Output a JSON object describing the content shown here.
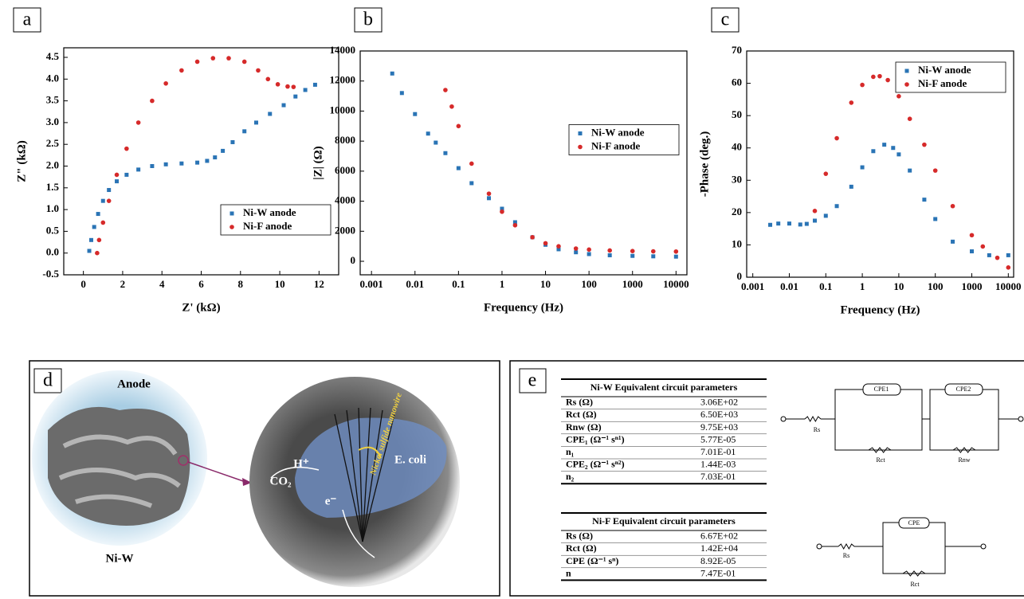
{
  "chart_data": [
    {
      "type": "scatter",
      "label": "a",
      "xlabel": "Z' (kΩ)",
      "ylabel": "Z\" (kΩ)",
      "xscale": "linear",
      "xlim": [
        -1,
        13
      ],
      "ylim": [
        -0.5,
        4.72
      ],
      "xticks": [
        0,
        2,
        4,
        6,
        8,
        10,
        12
      ],
      "yticks": [
        -0.5,
        {
          "value": 0,
          "label": "0.0"
        },
        0.5,
        {
          "value": 1,
          "label": "1.0"
        },
        1.5,
        {
          "value": 2,
          "label": "2.0"
        },
        2.5,
        {
          "value": 3,
          "label": "3.0"
        },
        3.5,
        {
          "value": 4,
          "label": "4.0"
        },
        4.5
      ],
      "legend": "lower right",
      "series": [
        {
          "name": "Ni-W anode",
          "color": "#2a74b5",
          "marker": "square",
          "x": [
            0.3,
            0.4,
            0.55,
            0.75,
            1.0,
            1.3,
            1.7,
            2.2,
            2.8,
            3.5,
            4.2,
            5.0,
            5.8,
            6.3,
            6.7,
            7.1,
            7.6,
            8.2,
            8.8,
            9.5,
            10.2,
            10.8,
            11.3,
            11.8
          ],
          "values": [
            0.05,
            0.3,
            0.6,
            0.9,
            1.2,
            1.45,
            1.65,
            1.8,
            1.92,
            2.0,
            2.04,
            2.06,
            2.08,
            2.12,
            2.2,
            2.35,
            2.55,
            2.8,
            3.0,
            3.2,
            3.4,
            3.6,
            3.75,
            3.87
          ]
        },
        {
          "name": "Ni-F anode",
          "color": "#d62a2a",
          "marker": "circle",
          "x": [
            0.7,
            0.8,
            1.0,
            1.3,
            1.7,
            2.2,
            2.8,
            3.5,
            4.2,
            5.0,
            5.8,
            6.6,
            7.4,
            8.2,
            8.9,
            9.4,
            9.9,
            10.4,
            10.7
          ],
          "values": [
            0.0,
            0.3,
            0.7,
            1.2,
            1.8,
            2.4,
            3.0,
            3.5,
            3.9,
            4.2,
            4.4,
            4.48,
            4.48,
            4.4,
            4.2,
            4.0,
            3.88,
            3.83,
            3.82
          ]
        }
      ]
    },
    {
      "type": "scatter",
      "label": "b",
      "xlabel": "Frequency (Hz)",
      "ylabel": "|Z| (Ω)",
      "xscale": "log",
      "xlim": [
        0.00055,
        17800
      ],
      "ylim": [
        -900,
        14000
      ],
      "xticks": [
        0.001,
        0.01,
        0.1,
        1,
        10,
        100,
        1000,
        10000
      ],
      "yticks": [
        0,
        2000,
        4000,
        6000,
        8000,
        10000,
        12000,
        14000
      ],
      "legend": "center right",
      "series": [
        {
          "name": "Ni-W anode",
          "color": "#2a74b5",
          "marker": "square",
          "x": [
            0.003,
            0.005,
            0.01,
            0.02,
            0.03,
            0.05,
            0.1,
            0.2,
            0.5,
            1,
            2,
            5,
            10,
            20,
            50,
            100,
            300,
            1000,
            3000,
            10000
          ],
          "values": [
            12500,
            11200,
            9800,
            8500,
            7900,
            7200,
            6200,
            5200,
            4200,
            3500,
            2600,
            1600,
            1100,
            800,
            600,
            480,
            400,
            360,
            330,
            310
          ]
        },
        {
          "name": "Ni-F anode",
          "color": "#d62a2a",
          "marker": "circle",
          "x": [
            0.05,
            0.07,
            0.1,
            0.2,
            0.5,
            1,
            2,
            5,
            10,
            20,
            50,
            100,
            300,
            1000,
            3000,
            10000
          ],
          "values": [
            11400,
            10300,
            9000,
            6500,
            4500,
            3300,
            2400,
            1600,
            1200,
            1000,
            850,
            780,
            720,
            680,
            660,
            650
          ]
        }
      ]
    },
    {
      "type": "scatter",
      "label": "c",
      "xlabel": "Frequency (Hz)",
      "ylabel": "-Phase (deg.)",
      "xscale": "log",
      "xlim": [
        0.00068,
        14000
      ],
      "ylim": [
        0,
        70
      ],
      "xticks": [
        0.001,
        0.01,
        0.1,
        1,
        10,
        100,
        1000,
        10000
      ],
      "yticks": [
        0,
        10,
        20,
        30,
        40,
        50,
        60,
        70
      ],
      "legend": "upper right",
      "series": [
        {
          "name": "Ni-W anode",
          "color": "#2a74b5",
          "marker": "square",
          "x": [
            0.003,
            0.005,
            0.01,
            0.02,
            0.03,
            0.05,
            0.1,
            0.2,
            0.5,
            1,
            2,
            4,
            7,
            10,
            20,
            50,
            100,
            300,
            1000,
            3000,
            10000
          ],
          "values": [
            16.2,
            16.6,
            16.6,
            16.3,
            16.5,
            17.5,
            19,
            22,
            28,
            34,
            39,
            41,
            40,
            38,
            33,
            24,
            18,
            11,
            8,
            6.8,
            6.8
          ]
        },
        {
          "name": "Ni-F anode",
          "color": "#d62a2a",
          "marker": "circle",
          "x": [
            0.05,
            0.1,
            0.2,
            0.5,
            1,
            2,
            3,
            5,
            10,
            20,
            50,
            100,
            300,
            1000,
            2000,
            5000,
            10000
          ],
          "values": [
            20.5,
            32,
            43,
            54,
            59.5,
            62,
            62.2,
            61,
            56,
            49,
            41,
            33,
            22,
            13,
            9.5,
            6,
            3
          ]
        }
      ]
    }
  ],
  "panel_d": {
    "label": "d",
    "anode": "Anode",
    "material": "Ni-W",
    "co2": "CO₂",
    "proton": "H⁺",
    "bacterium": "E. coli",
    "electron": "e⁻",
    "nanowire": "Nickel sulfide nanowire"
  },
  "panel_e": {
    "label": "e",
    "tables": [
      {
        "title": "Ni-W Equivalent circuit parameters",
        "rows": [
          [
            "Rs (Ω)",
            "3.06E+02"
          ],
          [
            "Rct (Ω)",
            "6.50E+03"
          ],
          [
            "Rnw (Ω)",
            "9.75E+03"
          ],
          [
            "CPE₁ (Ω⁻¹ sⁿ¹)",
            "5.77E-05"
          ],
          [
            "n₁",
            "7.01E-01"
          ],
          [
            "CPE₂ (Ω⁻¹ sⁿ²)",
            "1.44E-03"
          ],
          [
            "n₂",
            "7.03E-01"
          ]
        ]
      },
      {
        "title": "Ni-F Equivalent circuit parameters",
        "rows": [
          [
            "Rs (Ω)",
            "6.67E+02"
          ],
          [
            "Rct (Ω)",
            "1.42E+04"
          ],
          [
            "CPE (Ω⁻¹ sⁿ)",
            "8.92E-05"
          ],
          [
            "n",
            "7.47E-01"
          ]
        ]
      }
    ],
    "circuits": [
      {
        "rs": "Rs",
        "cpe1": "CPE1",
        "rct": "Rct",
        "cpe2": "CPE2",
        "rnw": "Rnw"
      },
      {
        "rs": "Rs",
        "cpe": "CPE",
        "rct": "Rct"
      }
    ]
  }
}
